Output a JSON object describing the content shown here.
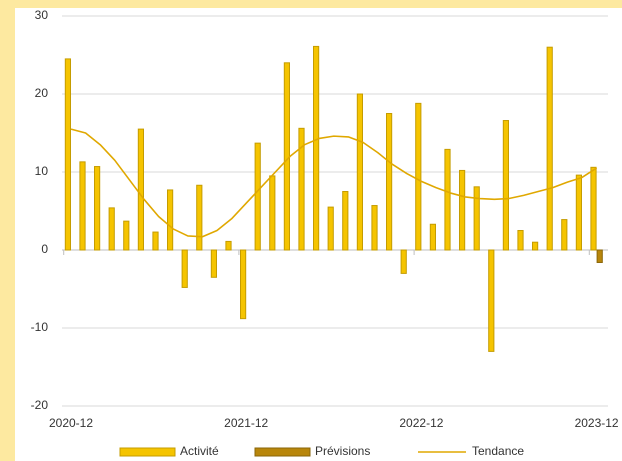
{
  "chart_data": {
    "type": "bar",
    "categories": [
      "2020-12",
      null,
      null,
      null,
      null,
      null,
      null,
      null,
      null,
      null,
      null,
      null,
      "2021-12",
      null,
      null,
      null,
      null,
      null,
      null,
      null,
      null,
      null,
      null,
      null,
      "2022-12",
      null,
      null,
      null,
      null,
      null,
      null,
      null,
      null,
      null,
      null,
      null,
      "2023-12"
    ],
    "series": [
      {
        "name": "Activité",
        "type": "bar",
        "color": "#f5c400",
        "stroke": "#c59c00",
        "values": [
          24.5,
          11.3,
          10.7,
          5.4,
          3.7,
          15.5,
          2.3,
          7.7,
          -4.8,
          8.3,
          -3.5,
          1.1,
          -8.8,
          13.7,
          9.5,
          24,
          15.6,
          26.1,
          5.5,
          7.5,
          20,
          5.7,
          17.5,
          -3,
          18.8,
          3.3,
          12.9,
          10.2,
          8.1,
          -13,
          16.6,
          2.5,
          1,
          26,
          3.9,
          9.6,
          10.6
        ]
      },
      {
        "name": "Prévisions",
        "type": "bar",
        "color": "#b8860b",
        "stroke": "#8a6508",
        "values": [
          null,
          null,
          null,
          null,
          null,
          null,
          null,
          null,
          null,
          null,
          null,
          null,
          null,
          null,
          null,
          null,
          null,
          null,
          null,
          null,
          null,
          null,
          null,
          null,
          null,
          null,
          null,
          null,
          null,
          null,
          null,
          null,
          null,
          null,
          null,
          null,
          -1.6
        ]
      },
      {
        "name": "Tendance",
        "type": "line",
        "color": "#e0a800",
        "values": [
          15.5,
          15,
          13.5,
          11.5,
          9,
          6.5,
          4.3,
          2.7,
          1.8,
          1.7,
          2.5,
          4,
          6,
          8,
          10,
          12,
          13.5,
          14.3,
          14.6,
          14.5,
          13.8,
          12.5,
          11,
          9.8,
          8.8,
          8,
          7.3,
          6.8,
          6.6,
          6.5,
          6.6,
          7,
          7.5,
          8,
          8.7,
          9.3,
          10.5
        ]
      }
    ],
    "ylim": [
      -20,
      30
    ],
    "yticks": [
      -20,
      -10,
      0,
      10,
      20,
      30
    ],
    "grid": true,
    "legend": "bottom"
  }
}
